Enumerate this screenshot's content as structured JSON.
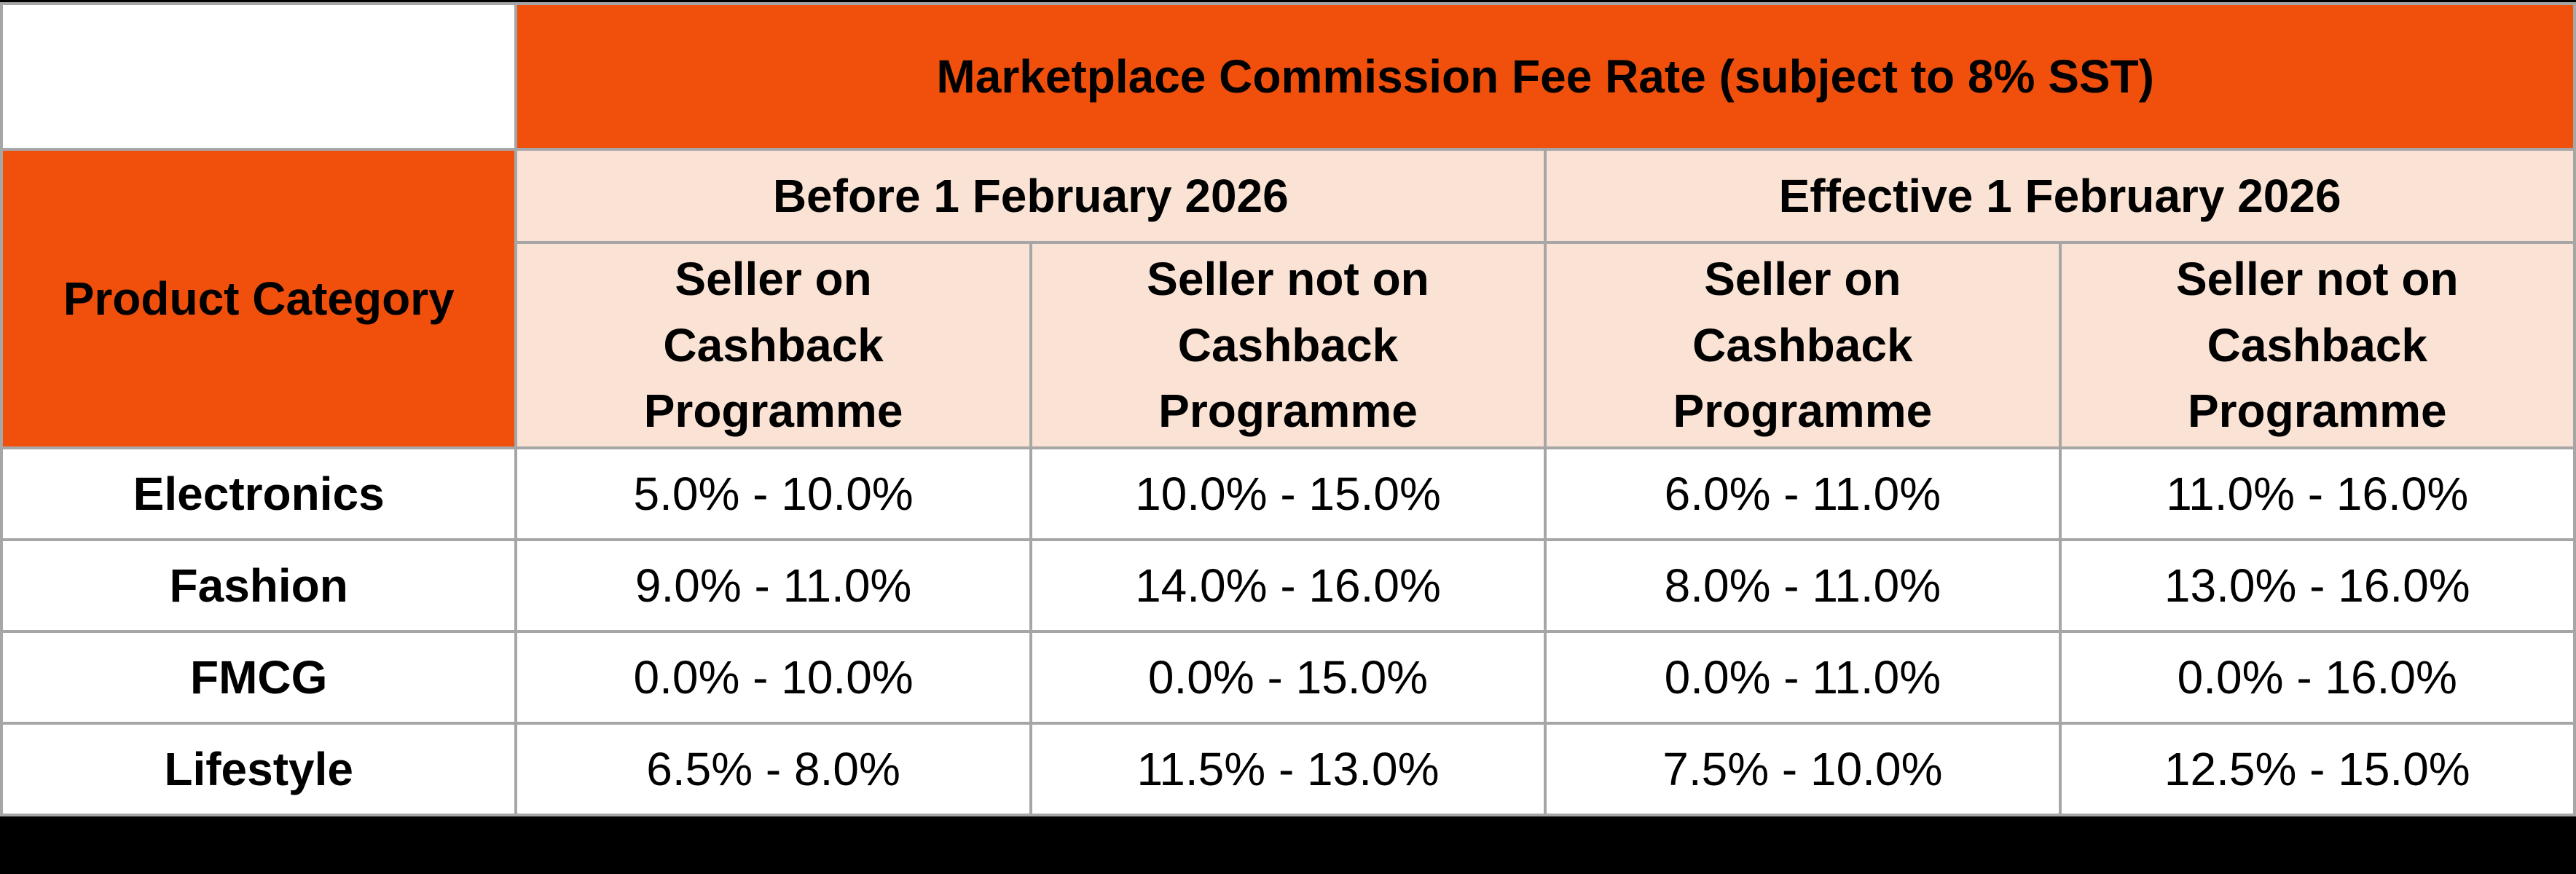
{
  "colors": {
    "accent_orange": "#F0500C",
    "header_peach": "#FAE3D4",
    "grid_gray": "#A6A6A6",
    "background_black": "#000000",
    "cell_white": "#FFFFFF"
  },
  "table": {
    "title": "Marketplace Commission Fee Rate (subject to 8% SST)",
    "row_header": "Product Category",
    "period_before": "Before 1 February 2026",
    "period_effective": "Effective 1 February 2026",
    "seller_display": {
      "on_1": "Seller on\nCashback\nProgramme",
      "not_on_1": "Seller not on\nCashback\nProgramme",
      "on_2": "Seller on\nCashback\nProgramme",
      "not_on_2": "Seller not on\nCashback\nProgramme"
    }
  },
  "chart_data": {
    "type": "table",
    "title": "Marketplace Commission Fee Rate (subject to 8% SST)",
    "row_header_label": "Product Category",
    "column_groups": [
      "Before 1 February 2026",
      "Effective 1 February 2026"
    ],
    "columns": [
      {
        "group": "Before 1 February 2026",
        "label": "Seller on Cashback Programme"
      },
      {
        "group": "Before 1 February 2026",
        "label": "Seller not on Cashback Programme"
      },
      {
        "group": "Effective 1 February 2026",
        "label": "Seller on Cashback Programme"
      },
      {
        "group": "Effective 1 February 2026",
        "label": "Seller not on Cashback Programme"
      }
    ],
    "rows": [
      {
        "category": "Electronics",
        "values": [
          "5.0% - 10.0%",
          "10.0% - 15.0%",
          "6.0% - 11.0%",
          "11.0% - 16.0%"
        ]
      },
      {
        "category": "Fashion",
        "values": [
          "9.0% - 11.0%",
          "14.0% - 16.0%",
          "8.0% - 11.0%",
          "13.0% - 16.0%"
        ]
      },
      {
        "category": "FMCG",
        "values": [
          "0.0% - 10.0%",
          "0.0% - 15.0%",
          "0.0% - 11.0%",
          "0.0% - 16.0%"
        ]
      },
      {
        "category": "Lifestyle",
        "values": [
          "6.5% - 8.0%",
          "11.5% - 13.0%",
          "7.5% - 10.0%",
          "12.5% - 15.0%"
        ]
      }
    ]
  }
}
